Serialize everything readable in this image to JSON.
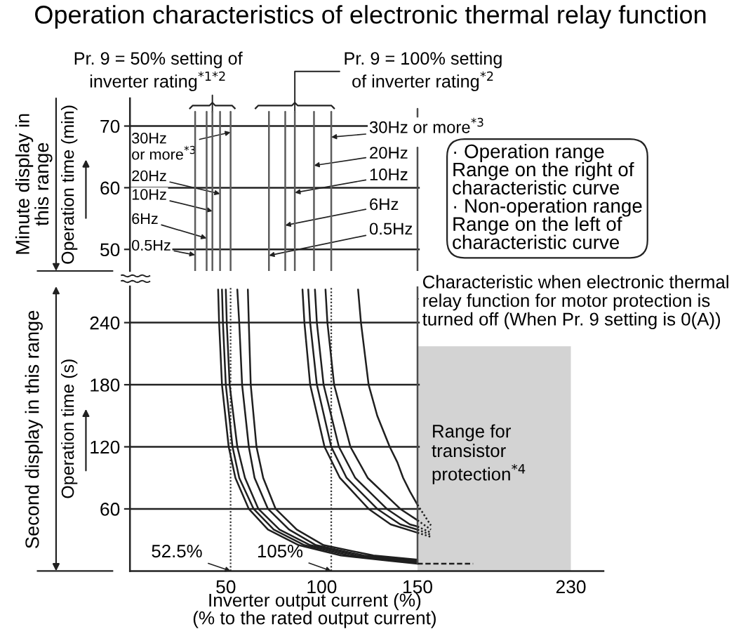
{
  "chart_data": [
    {
      "type": "line",
      "title": "Operation characteristics of electronic thermal relay function",
      "ylabel": "Operation time (min)",
      "xlim": [
        0,
        247
      ],
      "ylim": [
        46.5,
        74.5
      ],
      "yticks": [
        50,
        60,
        70
      ],
      "tick_labels": "y",
      "grid": "y",
      "series": [
        {
          "color": "#5c5c5c",
          "x": [
            34,
            34,
            34
          ],
          "values": [
            46.5,
            49.1,
            72.3
          ]
        },
        {
          "color": "#5c5c5c",
          "x": [
            40,
            40,
            40
          ],
          "values": [
            46.5,
            51.8,
            72.3
          ]
        },
        {
          "color": "#5c5c5c",
          "x": [
            43,
            43,
            43
          ],
          "values": [
            46.5,
            56.2,
            72.3
          ]
        },
        {
          "color": "#5c5c5c",
          "x": [
            47,
            47,
            47
          ],
          "values": [
            46.5,
            59,
            72.3
          ]
        },
        {
          "color": "#5c5c5c",
          "x": [
            52.5,
            52.5,
            52.5
          ],
          "values": [
            46.5,
            69,
            72.3
          ]
        },
        {
          "color": "#5c5c5c",
          "x": [
            72.5,
            72.5,
            72.5
          ],
          "values": [
            46.5,
            49,
            72.3
          ]
        },
        {
          "color": "#5c5c5c",
          "x": [
            81,
            81,
            81
          ],
          "values": [
            46.5,
            53.9,
            72.3
          ]
        },
        {
          "color": "#5c5c5c",
          "x": [
            86,
            86,
            86
          ],
          "values": [
            46.5,
            59.2,
            72.3
          ]
        },
        {
          "color": "#5c5c5c",
          "x": [
            96,
            96,
            96
          ],
          "values": [
            46.5,
            63.6,
            72.3
          ]
        },
        {
          "color": "#5c5c5c",
          "x": [
            105,
            105,
            105
          ],
          "values": [
            46.5,
            68.2,
            72.3
          ]
        },
        {
          "color": "#4d4d4d",
          "x": [
            150,
            150
          ],
          "values": [
            46.5,
            66.5
          ]
        },
        {
          "color": "#4d4d4d",
          "x": [
            150,
            150
          ],
          "values": [
            71.5,
            72.8
          ]
        }
      ],
      "annotations": [
        {
          "text": "Pr. 9 = 50% setting of\ninverter rating$^{*1*2}$",
          "x": 43,
          "y": 72.3
        },
        {
          "text": "Pr. 9 = 100% setting\nof inverter rating$^{*2}$",
          "x": 86,
          "y": 72.3
        },
        {
          "text": "30Hz\nor more$^{*3}$",
          "x": 52.5,
          "y": 69
        },
        {
          "text": "20Hz",
          "x": 47,
          "y": 59
        },
        {
          "text": "10Hz",
          "x": 43,
          "y": 56.2
        },
        {
          "text": "6Hz",
          "x": 40,
          "y": 51.8
        },
        {
          "text": "0.5Hz",
          "x": 34,
          "y": 49.1
        },
        {
          "text": "30Hz or more$^{*3}$",
          "x": 105,
          "y": 68.2
        },
        {
          "text": "20Hz",
          "x": 96,
          "y": 63.6
        },
        {
          "text": "10Hz",
          "x": 86,
          "y": 59.2
        },
        {
          "text": "6Hz",
          "x": 81,
          "y": 53.9
        },
        {
          "text": "0.5Hz",
          "x": 72.5,
          "y": 49
        },
        "· Operation range\nRange on the right of\ncharacteristic curve\n· Non-operation range\nRange on the left of\ncharacteristic curve",
        "Minute display in\nthis range"
      ]
    },
    {
      "type": "line",
      "xlabel": "Inverter output current (%)\n(% to the rated output current)",
      "ylabel": "Operation time (s)",
      "xlim": [
        0,
        247
      ],
      "xticks": [
        50,
        100,
        150,
        230
      ],
      "ylim": [
        0,
        275
      ],
      "yticks": [
        60,
        120,
        180,
        240
      ],
      "grid": "y",
      "series": [
        {
          "color": "#1f1f1f",
          "x": [
            46,
            46.5,
            48,
            51.5,
            55,
            62,
            72,
            88,
            110,
            135,
            150
          ],
          "values": [
            272,
            240,
            180,
            120,
            90,
            60,
            40,
            25,
            15,
            10,
            7
          ]
        },
        {
          "color": "#1f1f1f",
          "x": [
            48,
            48.5,
            50,
            53.5,
            57,
            64.5,
            75,
            91,
            114,
            139,
            150
          ],
          "values": [
            272,
            240,
            180,
            120,
            90,
            60,
            40,
            25,
            15,
            10,
            8
          ]
        },
        {
          "color": "#1f1f1f",
          "x": [
            50,
            50.5,
            52,
            56,
            60,
            67,
            78,
            94,
            118,
            143,
            150
          ],
          "values": [
            272,
            240,
            180,
            120,
            90,
            60,
            40,
            25,
            15,
            10,
            9
          ]
        },
        {
          "color": "#1f1f1f",
          "x": [
            56,
            57,
            58.5,
            62,
            65,
            72,
            83,
            97,
            122,
            150
          ],
          "values": [
            272,
            240,
            180,
            120,
            90,
            60,
            40,
            25,
            15,
            10
          ]
        },
        {
          "color": "#1f1f1f",
          "x": [
            61.5,
            62,
            63,
            66,
            69.5,
            76,
            87,
            101,
            127,
            150
          ],
          "values": [
            272,
            240,
            180,
            120,
            90,
            60,
            40,
            25,
            15,
            11
          ]
        },
        {
          "color": "#1f1f1f",
          "x": [
            90,
            91,
            94,
            101.5,
            109.5,
            124.5,
            136,
            150
          ],
          "values": [
            272,
            240,
            180,
            120,
            90,
            60,
            45,
            37
          ]
        },
        {
          "color": "#1f1f1f",
          "x": [
            93,
            94,
            97.5,
            105,
            113,
            129,
            141,
            150
          ],
          "values": [
            272,
            240,
            180,
            120,
            90,
            60,
            45,
            40
          ]
        },
        {
          "color": "#1f1f1f",
          "x": [
            96.5,
            97.5,
            101,
            109,
            117.5,
            134,
            146,
            150
          ],
          "values": [
            272,
            240,
            180,
            120,
            90,
            60,
            45,
            43
          ]
        },
        {
          "color": "#1f1f1f",
          "x": [
            102,
            103,
            106.5,
            115,
            124,
            141,
            150
          ],
          "values": [
            272,
            240,
            180,
            120,
            90,
            60,
            49
          ]
        },
        {
          "color": "#1f1f1f",
          "x": [
            119,
            120.5,
            124.5,
            129,
            135.5,
            139.5,
            142.5,
            146,
            150
          ],
          "values": [
            272,
            240,
            180,
            150,
            120,
            105,
            90,
            77,
            64
          ]
        },
        {
          "color": "#4d4d4d",
          "x": [
            150,
            150
          ],
          "values": [
            7,
            275
          ]
        },
        {
          "color": "#1f1f1f",
          "line_style": "dotted",
          "x": [
            150,
            157
          ],
          "values": [
            64,
            44
          ]
        },
        {
          "color": "#1f1f1f",
          "line_style": "dotted",
          "x": [
            150,
            157
          ],
          "values": [
            49,
            40
          ]
        },
        {
          "color": "#1f1f1f",
          "line_style": "dotted",
          "x": [
            150,
            157
          ],
          "values": [
            43,
            37
          ]
        },
        {
          "color": "#1f1f1f",
          "line_style": "dotted",
          "x": [
            150,
            157
          ],
          "values": [
            40,
            35
          ]
        },
        {
          "color": "#1f1f1f",
          "line_style": "dotted",
          "x": [
            150,
            157
          ],
          "values": [
            37,
            33
          ]
        },
        {
          "color": "#1f1f1f",
          "line_style": "dashed",
          "x": [
            150,
            179
          ],
          "values": [
            7,
            7
          ]
        }
      ],
      "ref_lines": [
        {
          "axis": "x",
          "value": 52.5,
          "label": "52.5%",
          "line_style": "dotted",
          "color": "#333333"
        },
        {
          "axis": "x",
          "value": 105,
          "label": "105%",
          "line_style": "dotted",
          "color": "#333333"
        }
      ],
      "bands": [
        {
          "axis": "x",
          "from": 150,
          "to": 230,
          "label": "Range for\ntransistor\nprotection$^{*4}$",
          "color": "#d3d3d3"
        }
      ],
      "annotations": [
        {
          "text": "Characteristic when electronic thermal\nrelay function for motor protection is\nturned off (When Pr. 9 setting is 0(A))",
          "x": 150,
          "y": 263
        },
        "Second display in this range"
      ]
    }
  ]
}
